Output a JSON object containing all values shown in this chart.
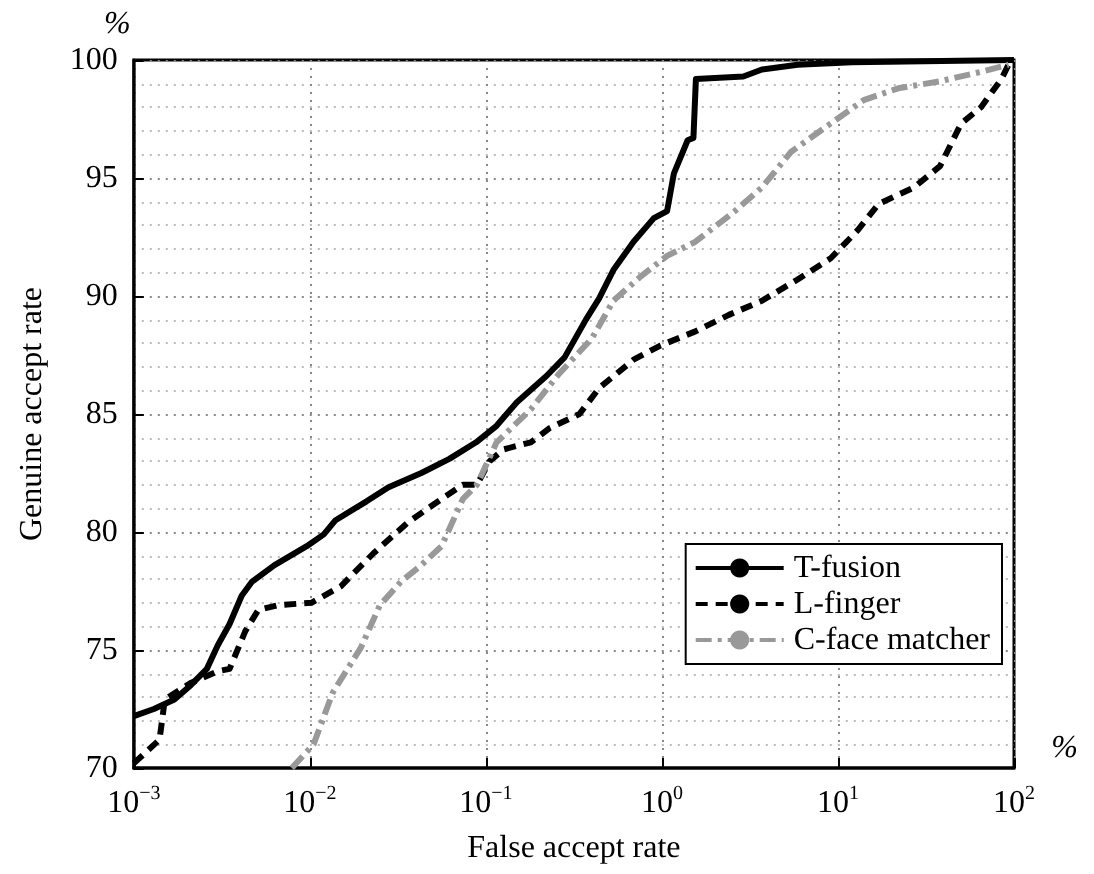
{
  "chart_data": {
    "type": "line",
    "xlabel": "False accept rate",
    "ylabel": "Genuine accept rate",
    "annotations": [
      "%",
      "%"
    ],
    "log": "x",
    "grid": true,
    "legend": "bottom right",
    "marker": "none",
    "xlim": [
      0.001,
      100
    ],
    "xticks": [
      {
        "value": 0.001,
        "label": "10$^{−3}$"
      },
      {
        "value": 0.01,
        "label": "10$^{−2}$"
      },
      {
        "value": 0.1,
        "label": "10$^{−1}$"
      },
      {
        "value": 1,
        "label": "10$^{0}$"
      },
      {
        "value": 10,
        "label": "10$^{1}$"
      },
      {
        "value": 100,
        "label": "10$^{2}$"
      }
    ],
    "ylim": [
      70,
      100
    ],
    "yticks": [
      70,
      75,
      80,
      85,
      90,
      95,
      100
    ],
    "series": [
      {
        "name": "T-fusion",
        "color": "#000000",
        "line_style": "solid",
        "x": [
          0.001,
          0.0013,
          0.0017,
          0.0021,
          0.0026,
          0.003,
          0.0035,
          0.0041,
          0.0047,
          0.0063,
          0.0096,
          0.012,
          0.014,
          0.021,
          0.028,
          0.043,
          0.062,
          0.088,
          0.115,
          0.15,
          0.22,
          0.28,
          0.37,
          0.44,
          0.53,
          0.69,
          0.9,
          1.07,
          1.17,
          1.4,
          1.51,
          1.56,
          2.9,
          3.7,
          5.9,
          12,
          100
        ],
        "values": [
          72.2,
          72.5,
          72.9,
          73.5,
          74.2,
          75.2,
          76.1,
          77.3,
          77.9,
          78.6,
          79.4,
          79.9,
          80.5,
          81.3,
          81.9,
          82.5,
          83.1,
          83.8,
          84.5,
          85.5,
          86.6,
          87.4,
          89.0,
          89.9,
          91.1,
          92.3,
          93.3,
          93.6,
          95.2,
          96.6,
          96.7,
          99.2,
          99.3,
          99.6,
          99.8,
          99.9,
          100
        ]
      },
      {
        "name": "L-finger",
        "color": "#000000",
        "line_style": "dashed",
        "x": [
          0.001,
          0.0014,
          0.0015,
          0.0021,
          0.003,
          0.0035,
          0.0043,
          0.0051,
          0.0066,
          0.0102,
          0.015,
          0.023,
          0.036,
          0.056,
          0.074,
          0.089,
          0.105,
          0.126,
          0.18,
          0.23,
          0.34,
          0.44,
          0.69,
          0.98,
          1.55,
          2.4,
          3.7,
          5.9,
          9.1,
          13,
          17,
          27,
          38,
          50,
          65,
          85,
          93
        ],
        "values": [
          70.2,
          71.2,
          72.9,
          73.6,
          74.1,
          74.2,
          75.8,
          76.7,
          76.9,
          77.0,
          77.7,
          79.1,
          80.4,
          81.4,
          82.0,
          82.0,
          83.0,
          83.5,
          83.8,
          84.4,
          85.0,
          86.1,
          87.3,
          87.9,
          88.5,
          89.2,
          89.8,
          90.7,
          91.6,
          92.8,
          93.9,
          94.6,
          95.5,
          97.3,
          98.0,
          99.2,
          99.8
        ]
      },
      {
        "name": "C-face matcher",
        "color": "#999999",
        "line_style": "dashdot",
        "x": [
          0.0079,
          0.0105,
          0.0135,
          0.0195,
          0.025,
          0.033,
          0.043,
          0.056,
          0.074,
          0.089,
          0.115,
          0.18,
          0.26,
          0.4,
          0.53,
          0.75,
          1.07,
          1.55,
          2.6,
          3.7,
          5.4,
          8.3,
          14,
          22,
          38,
          65,
          93
        ],
        "values": [
          70.0,
          71.0,
          73.2,
          75.1,
          76.9,
          77.9,
          78.6,
          79.4,
          81.4,
          82.0,
          83.8,
          85.2,
          86.7,
          88.2,
          89.8,
          90.8,
          91.7,
          92.3,
          93.6,
          94.6,
          96.1,
          97.1,
          98.3,
          98.8,
          99.1,
          99.5,
          99.8
        ]
      }
    ]
  }
}
